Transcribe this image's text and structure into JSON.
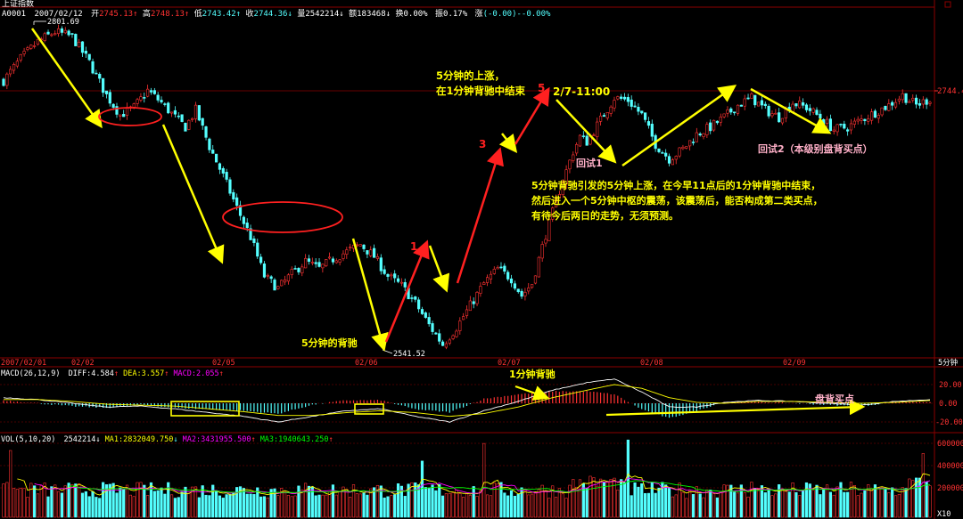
{
  "window": {
    "index_name": "上证指数",
    "code_fragment": "A0001",
    "date": "2007/02/12",
    "open_label": "开",
    "open": "2745.13",
    "high_label": "高",
    "high": "2748.13",
    "low_label": "低",
    "low": "2743.42",
    "close_label": "收",
    "close": "2744.36",
    "volume_label": "量",
    "volume": "2542214",
    "amount_label": "额",
    "amount": "183468",
    "turnover_label": "换",
    "turnover": "0.00%",
    "amplitude_label": "振",
    "amplitude": "0.17%",
    "change_label": "涨",
    "change": "(-0.00)",
    "change_pct": "-0.00%",
    "period": "5分钟",
    "zoom": "X10"
  },
  "colors": {
    "up": "#ff3232",
    "down": "#54ffff",
    "ma_white": "#ffffff",
    "ma_yellow": "#ffff00",
    "ma_magenta": "#ff00ff",
    "ma_green": "#00ff00",
    "annot_yellow": "#ffff00",
    "annot_red": "#ff2020",
    "annot_pink": "#ffb0c8",
    "grid": "#8b0000"
  },
  "chart_data": [
    {
      "type": "candlestick",
      "title": "上证指数",
      "x_tick_labels": [
        "2007/02/01",
        "02/02",
        "02/05",
        "02/06",
        "02/07",
        "02/08",
        "02/09"
      ],
      "y_tick_labels": [
        "2744.4"
      ],
      "marked_values": [
        {
          "label": "2801.69",
          "value": 2801.69,
          "kind": "high"
        },
        {
          "label": "2541.52",
          "value": 2541.52,
          "kind": "low"
        }
      ],
      "ylim": [
        2536,
        2810
      ],
      "last_price": 2744.4,
      "close_path": [
        [
          0,
          2760
        ],
        [
          5,
          2778
        ],
        [
          10,
          2792
        ],
        [
          15,
          2800
        ],
        [
          20,
          2796
        ],
        [
          25,
          2775
        ],
        [
          30,
          2748
        ],
        [
          34,
          2732
        ],
        [
          38,
          2738
        ],
        [
          42,
          2752
        ],
        [
          46,
          2742
        ],
        [
          50,
          2730
        ],
        [
          53,
          2722
        ],
        [
          56,
          2736
        ],
        [
          60,
          2706
        ],
        [
          64,
          2682
        ],
        [
          68,
          2656
        ],
        [
          72,
          2632
        ],
        [
          76,
          2600
        ],
        [
          80,
          2590
        ],
        [
          84,
          2602
        ],
        [
          88,
          2612
        ],
        [
          92,
          2606
        ],
        [
          96,
          2614
        ],
        [
          100,
          2620
        ],
        [
          104,
          2626
        ],
        [
          108,
          2616
        ],
        [
          112,
          2600
        ],
        [
          116,
          2592
        ],
        [
          120,
          2578
        ],
        [
          124,
          2560
        ],
        [
          128,
          2544
        ],
        [
          132,
          2558
        ],
        [
          136,
          2576
        ],
        [
          140,
          2594
        ],
        [
          144,
          2606
        ],
        [
          148,
          2598
        ],
        [
          151,
          2584
        ],
        [
          154,
          2594
        ],
        [
          158,
          2634
        ],
        [
          162,
          2670
        ],
        [
          166,
          2702
        ],
        [
          168,
          2714
        ],
        [
          170,
          2710
        ],
        [
          174,
          2728
        ],
        [
          178,
          2746
        ],
        [
          182,
          2744
        ],
        [
          186,
          2732
        ],
        [
          190,
          2708
        ],
        [
          194,
          2696
        ],
        [
          198,
          2704
        ],
        [
          202,
          2716
        ],
        [
          206,
          2722
        ],
        [
          210,
          2730
        ],
        [
          214,
          2740
        ],
        [
          218,
          2746
        ],
        [
          222,
          2736
        ],
        [
          226,
          2730
        ],
        [
          230,
          2742
        ],
        [
          234,
          2738
        ],
        [
          238,
          2730
        ],
        [
          242,
          2720
        ],
        [
          246,
          2722
        ],
        [
          250,
          2728
        ],
        [
          254,
          2734
        ],
        [
          258,
          2740
        ],
        [
          262,
          2748
        ],
        [
          266,
          2740
        ],
        [
          270,
          2745
        ]
      ]
    },
    {
      "type": "line",
      "title": "MACD(26,12,9)",
      "series": [
        {
          "name": "DIFF",
          "value": "4.584"
        },
        {
          "name": "DEA",
          "value": "3.557"
        },
        {
          "name": "MACD",
          "value": "2.055"
        }
      ],
      "y_tick_labels": [
        "20.00",
        "0.00",
        "-20.00"
      ],
      "ylim": [
        -30,
        30
      ],
      "diff_path": [
        [
          0,
          6
        ],
        [
          10,
          4
        ],
        [
          20,
          0
        ],
        [
          30,
          -4
        ],
        [
          40,
          -3
        ],
        [
          50,
          -6
        ],
        [
          60,
          -10
        ],
        [
          70,
          -14
        ],
        [
          80,
          -20
        ],
        [
          90,
          -14
        ],
        [
          100,
          -8
        ],
        [
          110,
          -6
        ],
        [
          120,
          -14
        ],
        [
          130,
          -20
        ],
        [
          140,
          -8
        ],
        [
          150,
          2
        ],
        [
          160,
          14
        ],
        [
          170,
          22
        ],
        [
          178,
          26
        ],
        [
          186,
          12
        ],
        [
          194,
          -4
        ],
        [
          202,
          -4
        ],
        [
          210,
          1
        ],
        [
          220,
          3
        ],
        [
          230,
          2
        ],
        [
          240,
          0
        ],
        [
          250,
          -2
        ],
        [
          260,
          2
        ],
        [
          270,
          4
        ]
      ],
      "dea_path": [
        [
          0,
          4
        ],
        [
          10,
          4
        ],
        [
          20,
          2
        ],
        [
          30,
          -1
        ],
        [
          40,
          -2
        ],
        [
          50,
          -3
        ],
        [
          60,
          -6
        ],
        [
          70,
          -9
        ],
        [
          80,
          -13
        ],
        [
          90,
          -13
        ],
        [
          100,
          -10
        ],
        [
          110,
          -8
        ],
        [
          120,
          -10
        ],
        [
          130,
          -14
        ],
        [
          140,
          -11
        ],
        [
          150,
          -4
        ],
        [
          160,
          6
        ],
        [
          170,
          14
        ],
        [
          178,
          20
        ],
        [
          186,
          16
        ],
        [
          194,
          6
        ],
        [
          202,
          1
        ],
        [
          210,
          0
        ],
        [
          220,
          2
        ],
        [
          230,
          2
        ],
        [
          240,
          1
        ],
        [
          250,
          0
        ],
        [
          260,
          1
        ],
        [
          270,
          3
        ]
      ]
    },
    {
      "type": "bar",
      "title": "VOL(5,10,20)",
      "series": [
        {
          "name": "VOL",
          "value": "2542214"
        },
        {
          "name": "MA1",
          "value": "2832049.750"
        },
        {
          "name": "MA2",
          "value": "3431955.500"
        },
        {
          "name": "MA3",
          "value": "1940643.250"
        }
      ],
      "y_tick_labels": [
        "600000",
        "400000",
        "200000"
      ],
      "ylim": [
        0,
        660000
      ]
    }
  ],
  "annotations": {
    "top_left_arrow_note": "",
    "rise_1": "5分钟的上涨，",
    "rise_2": "在1分钟背驰中结束",
    "time_mark": "2/7-11:00",
    "pullback1": "回试1",
    "pullback2": "回试2（本级别盘背买点）",
    "para_1": "5分钟背驰引发的5分钟上涨，在今早11点后的1分钟背驰中结束，",
    "para_2": "然后进入一个5分钟中枢的震荡，该震荡后，能否构成第二类买点，",
    "para_3": "有待今后两日的走势，无须预测。",
    "diverge5": "5分钟的背驰",
    "diverge1": "1分钟背驰",
    "pan_bei": "盘背买点",
    "n1": "1",
    "n3": "3",
    "n5": "5"
  }
}
